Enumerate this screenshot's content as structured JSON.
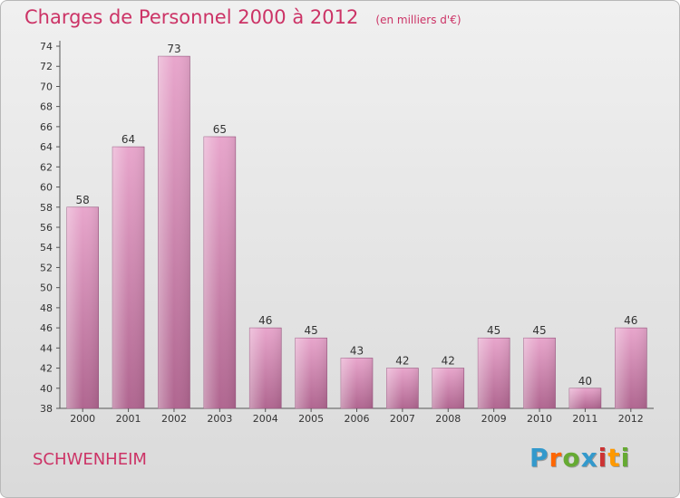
{
  "title": "Charges de Personnel 2000 à 2012",
  "subtitle": "(en milliers d'€)",
  "commune": "SCHWENHEIM",
  "brand": {
    "text": "Proxiti",
    "colors": [
      "#3399cc",
      "#ff6600",
      "#66aa33",
      "#3399cc",
      "#cc3333",
      "#ff9900",
      "#66aa33"
    ]
  },
  "colors": {
    "title": "#cc3366",
    "bar_light": "#e8a6cc",
    "bar_dark": "#b06690"
  },
  "chart_data": {
    "type": "bar",
    "title": "Charges de Personnel 2000 à 2012",
    "subtitle": "(en milliers d'€)",
    "categories": [
      "2000",
      "2001",
      "2002",
      "2003",
      "2004",
      "2005",
      "2006",
      "2007",
      "2008",
      "2009",
      "2010",
      "2011",
      "2012"
    ],
    "values": [
      58,
      64,
      73,
      65,
      46,
      45,
      43,
      42,
      42,
      45,
      45,
      40,
      46
    ],
    "ylim": [
      38,
      74
    ],
    "yticks": [
      38,
      40,
      42,
      44,
      46,
      48,
      50,
      52,
      54,
      56,
      58,
      60,
      62,
      64,
      66,
      68,
      70,
      72,
      74
    ],
    "grid": false,
    "legend": "none"
  }
}
